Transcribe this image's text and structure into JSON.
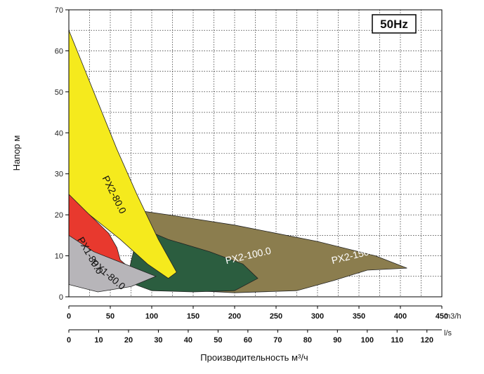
{
  "chart_data": {
    "type": "area",
    "ylabel": "Напор м",
    "xlabel": "Производительность м³/ч",
    "ylim": [
      0,
      70
    ],
    "y_ticks": [
      0,
      10,
      20,
      30,
      40,
      50,
      60,
      70
    ],
    "xlim": [
      0,
      450
    ],
    "grid": true,
    "legend": "none",
    "annotation": "50Hz",
    "x_axes": [
      {
        "unit": "m3/h",
        "ticks": [
          0,
          50,
          100,
          150,
          200,
          250,
          300,
          350,
          400,
          450
        ],
        "labels": [
          "0",
          "50",
          "100",
          "150",
          "200",
          "250",
          "300",
          "350",
          "400",
          "450"
        ]
      },
      {
        "unit": "l/s",
        "ticks": [
          0,
          36,
          72,
          108,
          144,
          180,
          216,
          252,
          288,
          324,
          360,
          396,
          432
        ],
        "labels": [
          "0",
          "10",
          "20",
          "30",
          "40",
          "50",
          "60",
          "70",
          "80",
          "90",
          "100",
          "110",
          "120"
        ]
      }
    ],
    "series": [
      {
        "name": "PX2-150.0",
        "color": "#8b7d4e",
        "points": [
          [
            85,
            21
          ],
          [
            120,
            20
          ],
          [
            200,
            17.5
          ],
          [
            300,
            13.5
          ],
          [
            370,
            10
          ],
          [
            408,
            7
          ],
          [
            360,
            6.5
          ],
          [
            320,
            4
          ],
          [
            275,
            1.5
          ],
          [
            200,
            1
          ],
          [
            150,
            1.5
          ],
          [
            115,
            5
          ]
        ]
      },
      {
        "name": "PX2-100.0",
        "color": "#2b5d3f",
        "points": [
          [
            85,
            17
          ],
          [
            120,
            14
          ],
          [
            170,
            11
          ],
          [
            210,
            8
          ],
          [
            228,
            4.5
          ],
          [
            200,
            1.5
          ],
          [
            150,
            1.2
          ],
          [
            100,
            1.5
          ],
          [
            80,
            3
          ],
          [
            72,
            6
          ]
        ]
      },
      {
        "name": "PX2-80.0",
        "color": "#f5ea1d",
        "points": [
          [
            0,
            65
          ],
          [
            20,
            55
          ],
          [
            58,
            36
          ],
          [
            82,
            25
          ],
          [
            108,
            14
          ],
          [
            130,
            6
          ],
          [
            120,
            4.5
          ],
          [
            95,
            8
          ],
          [
            62,
            14
          ],
          [
            25,
            20
          ],
          [
            0,
            24
          ]
        ]
      },
      {
        "name": "PX1-80.0",
        "color": "#e8392e",
        "points": [
          [
            0,
            25
          ],
          [
            20,
            21
          ],
          [
            48,
            15.5
          ],
          [
            58,
            12
          ],
          [
            62,
            9
          ],
          [
            85,
            5
          ],
          [
            62,
            3
          ],
          [
            40,
            2
          ],
          [
            0,
            6
          ]
        ]
      },
      {
        "name": "PX1-80.0",
        "color": "#b7b5b9",
        "points": [
          [
            0,
            15
          ],
          [
            30,
            11
          ],
          [
            55,
            9
          ],
          [
            105,
            5
          ],
          [
            75,
            2.5
          ],
          [
            35,
            1.2
          ],
          [
            0,
            3
          ]
        ]
      }
    ],
    "region_labels": [
      {
        "text": "PX2-150.0",
        "x": 318,
        "y": 8,
        "angle": -14,
        "color": "#ffffff"
      },
      {
        "text": "PX2-100.0",
        "x": 190,
        "y": 8,
        "angle": -13,
        "color": "#ffffff"
      },
      {
        "text": "PX2-80.0",
        "x": 40,
        "y": 29,
        "angle": 63,
        "color": "#111111"
      },
      {
        "text": "PX1-80.0",
        "x": 10,
        "y": 14,
        "angle": 60,
        "color": "#111111"
      },
      {
        "text": "PX1-80.0",
        "x": 26,
        "y": 8,
        "angle": 40,
        "color": "#111111"
      }
    ]
  }
}
